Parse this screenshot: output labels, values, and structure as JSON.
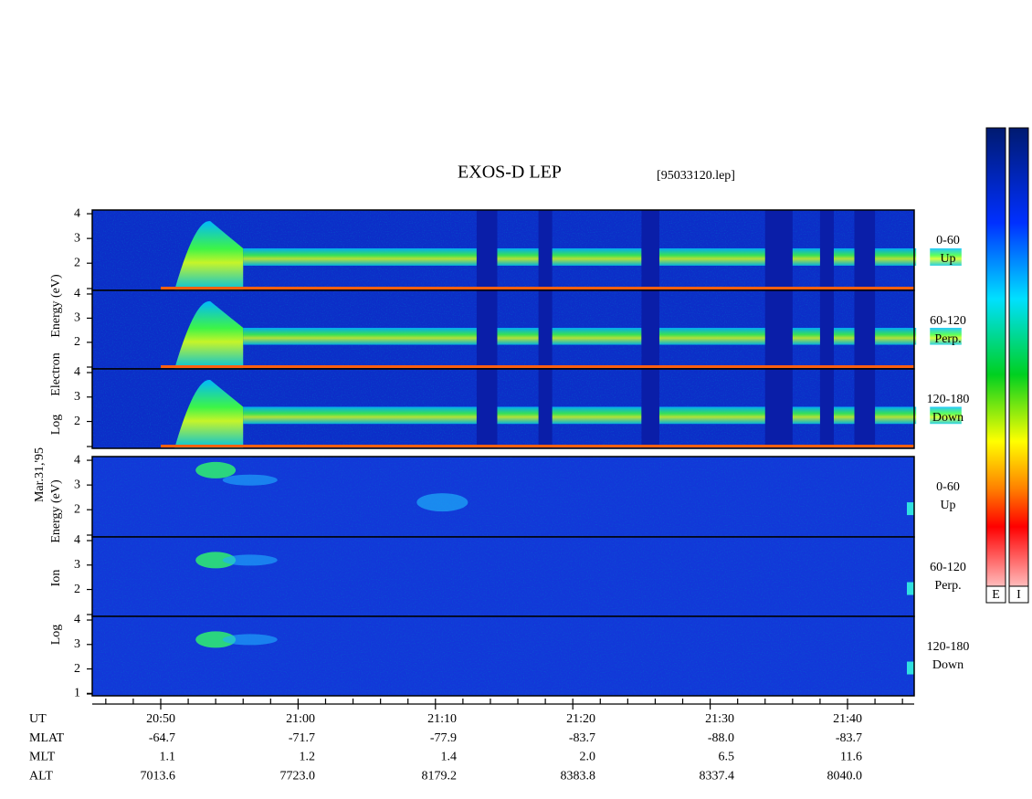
{
  "title": "EXOS-D LEP",
  "file": "[95033120.lep]",
  "date": "Mar.31,'95",
  "electron_axis": [
    "Log",
    "Electron",
    "Energy (eV)"
  ],
  "ion_axis": [
    "Log",
    "Ion",
    "Energy (eV)"
  ],
  "panels": [
    {
      "label": [
        "0-60",
        "Up"
      ],
      "yticks": [
        4,
        3,
        2
      ]
    },
    {
      "label": [
        "60-120",
        "Perp."
      ],
      "yticks": [
        4,
        3,
        2
      ]
    },
    {
      "label": [
        "120-180",
        "Down"
      ],
      "yticks": [
        4,
        3,
        2
      ]
    },
    {
      "label": [
        "0-60",
        "Up"
      ],
      "yticks": [
        4,
        3,
        2
      ]
    },
    {
      "label": [
        "60-120",
        "Perp."
      ],
      "yticks": [
        4,
        3,
        2
      ]
    },
    {
      "label": [
        "120-180",
        "Down"
      ],
      "yticks": [
        4,
        3,
        2,
        1
      ]
    }
  ],
  "ephemeris": [
    {
      "name": "UT",
      "values": [
        "20:50",
        "21:00",
        "21:10",
        "21:20",
        "21:30",
        "21:40"
      ]
    },
    {
      "name": "MLAT",
      "values": [
        "-64.7",
        "-71.7",
        "-77.9",
        "-83.7",
        "-88.0",
        "-83.7"
      ]
    },
    {
      "name": "MLT",
      "values": [
        "1.1",
        "1.2",
        "1.4",
        "2.0",
        "6.5",
        "11.6"
      ]
    },
    {
      "name": "ALT",
      "values": [
        "7013.6",
        "7723.0",
        "8179.2",
        "8383.8",
        "8337.4",
        "8040.0"
      ]
    }
  ],
  "colorbar": [
    "E",
    "I"
  ]
}
